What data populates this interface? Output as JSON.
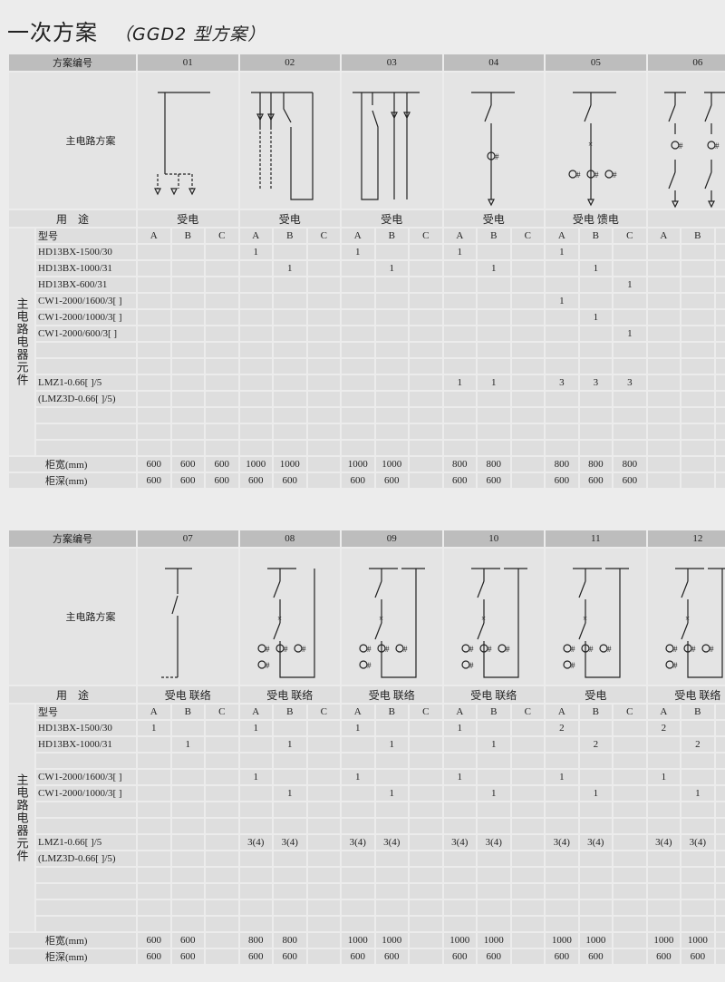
{
  "title": "一次方案",
  "subtitle": "（GGD2 型方案）",
  "labels": {
    "scheme_no": "方案编号",
    "main_circuit": "主电路方案",
    "usage": "用　途",
    "model": "型号",
    "components": "主电路电器元件",
    "width": "柜宽(mm)",
    "depth": "柜深(mm)"
  },
  "sub_columns": [
    "A",
    "B",
    "C"
  ],
  "tables": [
    {
      "schemes": [
        "01",
        "02",
        "03",
        "04",
        "05",
        "06"
      ],
      "usage": [
        "受电",
        "受电",
        "受电",
        "受电",
        "受电  馈电",
        ""
      ],
      "rows": [
        {
          "name": "HD13BX-1500/30",
          "cells": [
            "",
            "",
            "",
            "1",
            "",
            "",
            "1",
            "",
            "",
            "1",
            "",
            "",
            "1",
            "",
            "",
            "",
            "",
            ""
          ]
        },
        {
          "name": "HD13BX-1000/31",
          "cells": [
            "",
            "",
            "",
            "",
            "1",
            "",
            "",
            "1",
            "",
            "",
            "1",
            "",
            "",
            "1",
            "",
            "",
            "",
            ""
          ]
        },
        {
          "name": "HD13BX-600/31",
          "cells": [
            "",
            "",
            "",
            "",
            "",
            "",
            "",
            "",
            "",
            "",
            "",
            "",
            "",
            "",
            "1",
            "",
            "",
            ""
          ]
        },
        {
          "name": "CW1-2000/1600/3[ ]",
          "cells": [
            "",
            "",
            "",
            "",
            "",
            "",
            "",
            "",
            "",
            "",
            "",
            "",
            "1",
            "",
            "",
            "",
            "",
            ""
          ]
        },
        {
          "name": "CW1-2000/1000/3[ ]",
          "cells": [
            "",
            "",
            "",
            "",
            "",
            "",
            "",
            "",
            "",
            "",
            "",
            "",
            "",
            "1",
            "",
            "",
            "",
            ""
          ]
        },
        {
          "name": "CW1-2000/600/3[ ]",
          "cells": [
            "",
            "",
            "",
            "",
            "",
            "",
            "",
            "",
            "",
            "",
            "",
            "",
            "",
            "",
            "1",
            "",
            "",
            ""
          ]
        },
        {
          "name": "",
          "cells": [
            "",
            "",
            "",
            "",
            "",
            "",
            "",
            "",
            "",
            "",
            "",
            "",
            "",
            "",
            "",
            "",
            "",
            ""
          ]
        },
        {
          "name": "",
          "cells": [
            "",
            "",
            "",
            "",
            "",
            "",
            "",
            "",
            "",
            "",
            "",
            "",
            "",
            "",
            "",
            "",
            "",
            ""
          ]
        },
        {
          "name": "LMZ1-0.66[ ]/5",
          "cells": [
            "",
            "",
            "",
            "",
            "",
            "",
            "",
            "",
            "",
            "1",
            "1",
            "",
            "3",
            "3",
            "3",
            "",
            "",
            ""
          ]
        },
        {
          "name": "(LMZ3D-0.66[ ]/5)",
          "cells": [
            "",
            "",
            "",
            "",
            "",
            "",
            "",
            "",
            "",
            "",
            "",
            "",
            "",
            "",
            "",
            "",
            "",
            ""
          ]
        },
        {
          "name": "",
          "cells": [
            "",
            "",
            "",
            "",
            "",
            "",
            "",
            "",
            "",
            "",
            "",
            "",
            "",
            "",
            "",
            "",
            "",
            ""
          ]
        },
        {
          "name": "",
          "cells": [
            "",
            "",
            "",
            "",
            "",
            "",
            "",
            "",
            "",
            "",
            "",
            "",
            "",
            "",
            "",
            "",
            "",
            ""
          ]
        },
        {
          "name": "",
          "cells": [
            "",
            "",
            "",
            "",
            "",
            "",
            "",
            "",
            "",
            "",
            "",
            "",
            "",
            "",
            "",
            "",
            "",
            ""
          ]
        }
      ],
      "width": [
        "600",
        "600",
        "600",
        "1000",
        "1000",
        "",
        "1000",
        "1000",
        "",
        "800",
        "800",
        "",
        "800",
        "800",
        "800",
        "",
        "",
        ""
      ],
      "depth": [
        "600",
        "600",
        "600",
        "600",
        "600",
        "",
        "600",
        "600",
        "",
        "600",
        "600",
        "",
        "600",
        "600",
        "600",
        "",
        "",
        ""
      ]
    },
    {
      "schemes": [
        "07",
        "08",
        "09",
        "10",
        "11",
        "12"
      ],
      "usage": [
        "受电  联络",
        "受电  联络",
        "受电  联络",
        "受电  联络",
        "受电",
        "受电  联络"
      ],
      "rows": [
        {
          "name": "HD13BX-1500/30",
          "cells": [
            "1",
            "",
            "",
            "1",
            "",
            "",
            "1",
            "",
            "",
            "1",
            "",
            "",
            "2",
            "",
            "",
            "2",
            "",
            ""
          ]
        },
        {
          "name": "HD13BX-1000/31",
          "cells": [
            "",
            "1",
            "",
            "",
            "1",
            "",
            "",
            "1",
            "",
            "",
            "1",
            "",
            "",
            "2",
            "",
            "",
            "2",
            ""
          ]
        },
        {
          "name": "",
          "cells": [
            "",
            "",
            "",
            "",
            "",
            "",
            "",
            "",
            "",
            "",
            "",
            "",
            "",
            "",
            "",
            "",
            "",
            ""
          ]
        },
        {
          "name": "CW1-2000/1600/3[ ]",
          "cells": [
            "",
            "",
            "",
            "1",
            "",
            "",
            "1",
            "",
            "",
            "1",
            "",
            "",
            "1",
            "",
            "",
            "1",
            "",
            ""
          ]
        },
        {
          "name": "CW1-2000/1000/3[ ]",
          "cells": [
            "",
            "",
            "",
            "",
            "1",
            "",
            "",
            "1",
            "",
            "",
            "1",
            "",
            "",
            "1",
            "",
            "",
            "1",
            ""
          ]
        },
        {
          "name": "",
          "cells": [
            "",
            "",
            "",
            "",
            "",
            "",
            "",
            "",
            "",
            "",
            "",
            "",
            "",
            "",
            "",
            "",
            "",
            ""
          ]
        },
        {
          "name": "",
          "cells": [
            "",
            "",
            "",
            "",
            "",
            "",
            "",
            "",
            "",
            "",
            "",
            "",
            "",
            "",
            "",
            "",
            "",
            ""
          ]
        },
        {
          "name": "LMZ1-0.66[ ]/5",
          "cells": [
            "",
            "",
            "",
            "3(4)",
            "3(4)",
            "",
            "3(4)",
            "3(4)",
            "",
            "3(4)",
            "3(4)",
            "",
            "3(4)",
            "3(4)",
            "",
            "3(4)",
            "3(4)",
            ""
          ]
        },
        {
          "name": "(LMZ3D-0.66[ ]/5)",
          "cells": [
            "",
            "",
            "",
            "",
            "",
            "",
            "",
            "",
            "",
            "",
            "",
            "",
            "",
            "",
            "",
            "",
            "",
            ""
          ]
        },
        {
          "name": "",
          "cells": [
            "",
            "",
            "",
            "",
            "",
            "",
            "",
            "",
            "",
            "",
            "",
            "",
            "",
            "",
            "",
            "",
            "",
            ""
          ]
        },
        {
          "name": "",
          "cells": [
            "",
            "",
            "",
            "",
            "",
            "",
            "",
            "",
            "",
            "",
            "",
            "",
            "",
            "",
            "",
            "",
            "",
            ""
          ]
        },
        {
          "name": "",
          "cells": [
            "",
            "",
            "",
            "",
            "",
            "",
            "",
            "",
            "",
            "",
            "",
            "",
            "",
            "",
            "",
            "",
            "",
            ""
          ]
        },
        {
          "name": "",
          "cells": [
            "",
            "",
            "",
            "",
            "",
            "",
            "",
            "",
            "",
            "",
            "",
            "",
            "",
            "",
            "",
            "",
            "",
            ""
          ]
        }
      ],
      "width": [
        "600",
        "600",
        "",
        "800",
        "800",
        "",
        "1000",
        "1000",
        "",
        "1000",
        "1000",
        "",
        "1000",
        "1000",
        "",
        "1000",
        "1000",
        ""
      ],
      "depth": [
        "600",
        "600",
        "",
        "600",
        "600",
        "",
        "600",
        "600",
        "",
        "600",
        "600",
        "",
        "600",
        "600",
        "",
        "600",
        "600",
        ""
      ]
    }
  ],
  "diagram_icons": [
    "busbar-icon",
    "switch-icon",
    "current-transformer-icon"
  ]
}
